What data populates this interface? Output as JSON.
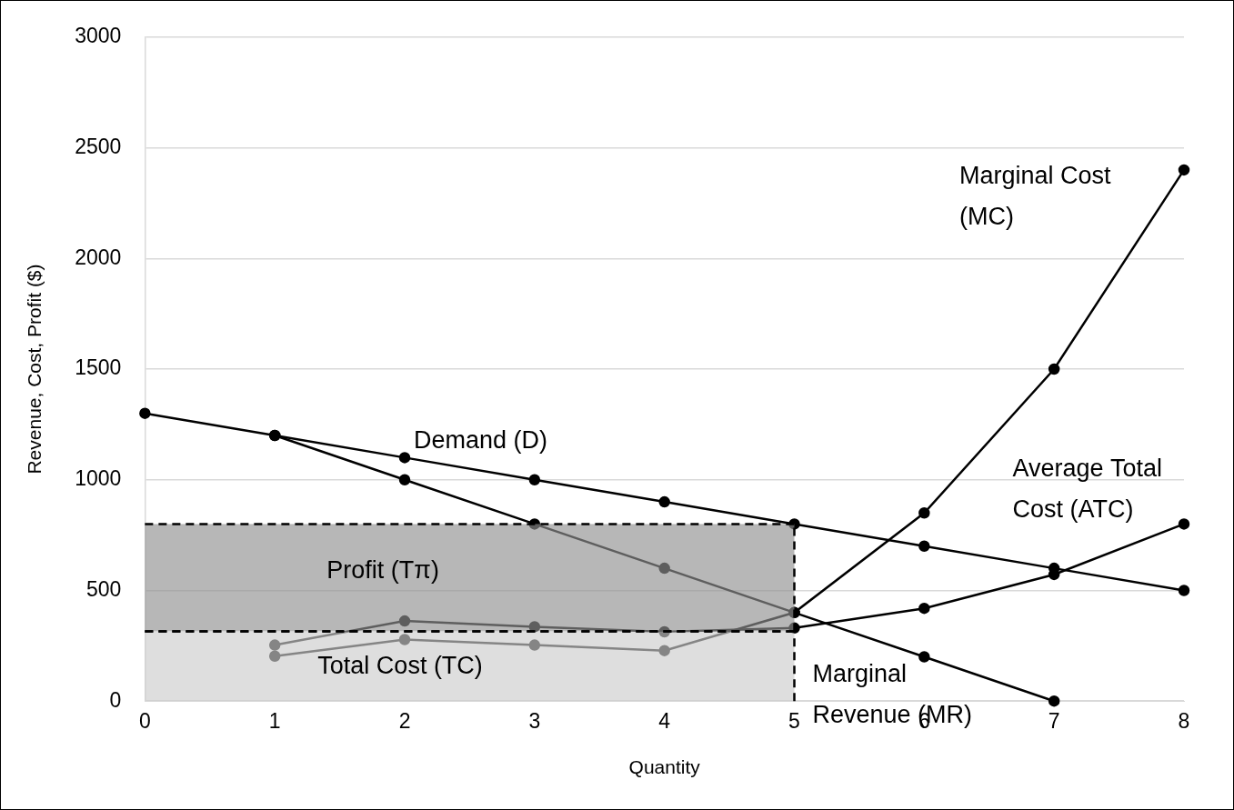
{
  "chart_data": {
    "type": "line",
    "x_label": "Quantity",
    "y_label": "Revenue, Cost, Profit ($)",
    "xlim": [
      0,
      8
    ],
    "xticks": [
      0,
      1,
      2,
      3,
      4,
      5,
      6,
      7,
      8
    ],
    "ylim": [
      0,
      3000
    ],
    "yticks": [
      0,
      500,
      1000,
      1500,
      2000,
      2500,
      3000
    ],
    "grid": true,
    "series": [
      {
        "name": "Demand (D)",
        "color": "#000000",
        "marker": "circle",
        "line_style": "solid",
        "x": [
          0,
          1,
          2,
          3,
          4,
          5,
          6,
          7,
          8
        ],
        "values": [
          1300,
          1200,
          1100,
          1000,
          900,
          800,
          700,
          600,
          500
        ]
      },
      {
        "name": "Marginal Revenue (MR)",
        "color": "#000000",
        "marker": "circle",
        "line_style": "solid",
        "x": [
          1,
          2,
          3,
          4,
          5,
          6,
          7
        ],
        "values": [
          1200,
          1000,
          800,
          600,
          400,
          200,
          0
        ]
      },
      {
        "name": "Marginal Cost (MC)",
        "color": "#000000",
        "marker": "circle",
        "line_style": "solid",
        "x": [
          1,
          2,
          3,
          4,
          5,
          6,
          7,
          8
        ],
        "values": [
          203,
          278,
          253,
          228,
          400,
          850,
          1500,
          2400
        ]
      },
      {
        "name": "Average Total Cost (ATC)",
        "color": "#000000",
        "marker": "circle",
        "line_style": "solid",
        "x": [
          1,
          2,
          3,
          4,
          5,
          6,
          7,
          8
        ],
        "values": [
          253,
          362,
          336,
          313,
          330,
          419,
          572,
          800
        ]
      }
    ],
    "areas": [
      {
        "color": "#909090",
        "x": [
          0,
          5
        ],
        "y": [
          315,
          800
        ],
        "line_style": "dashed"
      },
      {
        "color": "#cccccc",
        "x": [
          0,
          5
        ],
        "y": [
          0,
          315
        ],
        "line_style": "dashed"
      }
    ],
    "annotations": [
      {
        "text": [
          "Demand (D)"
        ],
        "x": 2.07,
        "y": 1173
      },
      {
        "text": [
          "Marginal Cost",
          "(MC)"
        ],
        "x": 6.27,
        "y": 2370
      },
      {
        "text": [
          "Average Total",
          "Cost (ATC)"
        ],
        "x": 6.68,
        "y": 1048
      },
      {
        "text": [
          "Marginal",
          "Revenue (MR)"
        ],
        "x": 5.14,
        "y": 116
      },
      {
        "text": [
          "Profit (Tπ)"
        ],
        "x": 1.4,
        "y": 584
      },
      {
        "text": [
          "Total Cost (TC)"
        ],
        "x": 1.33,
        "y": 153
      }
    ]
  }
}
